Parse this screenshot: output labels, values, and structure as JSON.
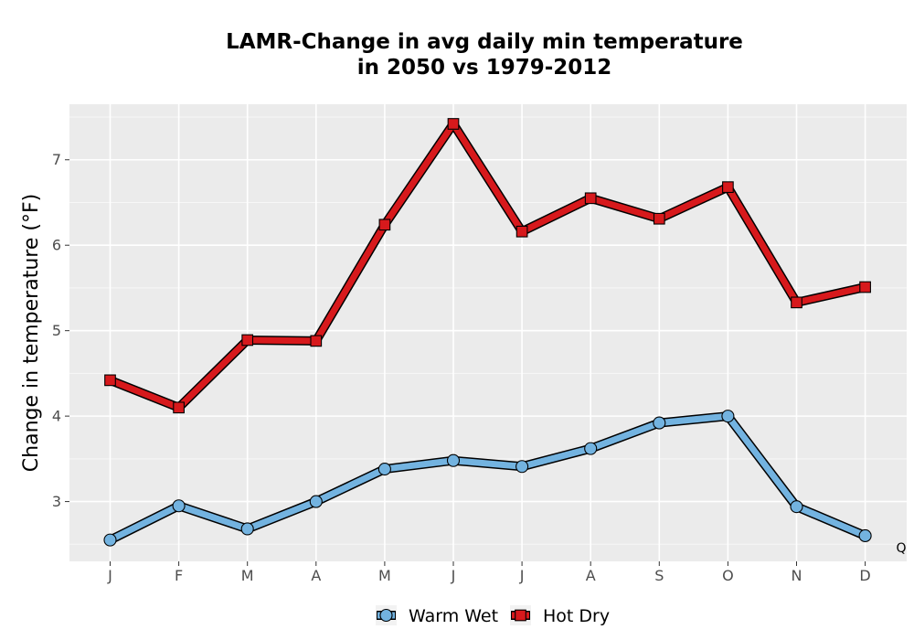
{
  "chart_data": {
    "type": "line",
    "title_lines": [
      "LAMR-Change in avg daily min temperature",
      "in 2050 vs 1979-2012"
    ],
    "xlabel": "",
    "ylabel": "Change in temperature (°F)",
    "categories": [
      "J",
      "F",
      "M",
      "A",
      "M",
      "J",
      "J",
      "A",
      "S",
      "O",
      "N",
      "D"
    ],
    "ylim": [
      2.3,
      7.65
    ],
    "yticks": [
      3,
      4,
      5,
      6,
      7
    ],
    "grid": true,
    "legend_position": "bottom",
    "series": [
      {
        "name": "Warm Wet",
        "marker": "circle",
        "fill": "#73b3e0",
        "values": [
          2.55,
          2.95,
          2.68,
          3.0,
          3.38,
          3.48,
          3.41,
          3.62,
          3.92,
          4.0,
          2.94,
          2.6
        ]
      },
      {
        "name": "Hot Dry",
        "marker": "square",
        "fill": "#d7191c",
        "values": [
          4.42,
          4.1,
          4.89,
          4.88,
          6.24,
          7.42,
          6.16,
          6.55,
          6.31,
          6.68,
          5.33,
          5.51
        ]
      }
    ],
    "corner_label": "Q"
  }
}
